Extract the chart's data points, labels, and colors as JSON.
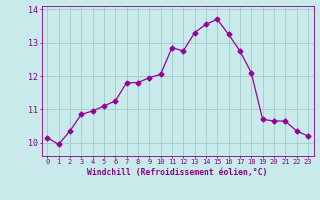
{
  "x": [
    0,
    1,
    2,
    3,
    4,
    5,
    6,
    7,
    8,
    9,
    10,
    11,
    12,
    13,
    14,
    15,
    16,
    17,
    18,
    19,
    20,
    21,
    22,
    23
  ],
  "y": [
    10.15,
    9.95,
    10.35,
    10.85,
    10.95,
    11.1,
    11.25,
    11.8,
    11.8,
    11.95,
    12.05,
    12.85,
    12.75,
    13.3,
    13.55,
    13.7,
    13.25,
    12.75,
    12.1,
    10.7,
    10.65,
    10.65,
    10.35,
    10.2
  ],
  "line_color": "#990099",
  "marker": "D",
  "marker_size": 2.5,
  "bg_color": "#c8eaea",
  "grid_color": "#a0cccc",
  "xlabel": "Windchill (Refroidissement éolien,°C)",
  "xlabel_color": "#880088",
  "tick_color": "#880088",
  "ylim": [
    9.6,
    14.1
  ],
  "yticks": [
    10,
    11,
    12,
    13,
    14
  ],
  "xticks": [
    0,
    1,
    2,
    3,
    4,
    5,
    6,
    7,
    8,
    9,
    10,
    11,
    12,
    13,
    14,
    15,
    16,
    17,
    18,
    19,
    20,
    21,
    22,
    23
  ]
}
